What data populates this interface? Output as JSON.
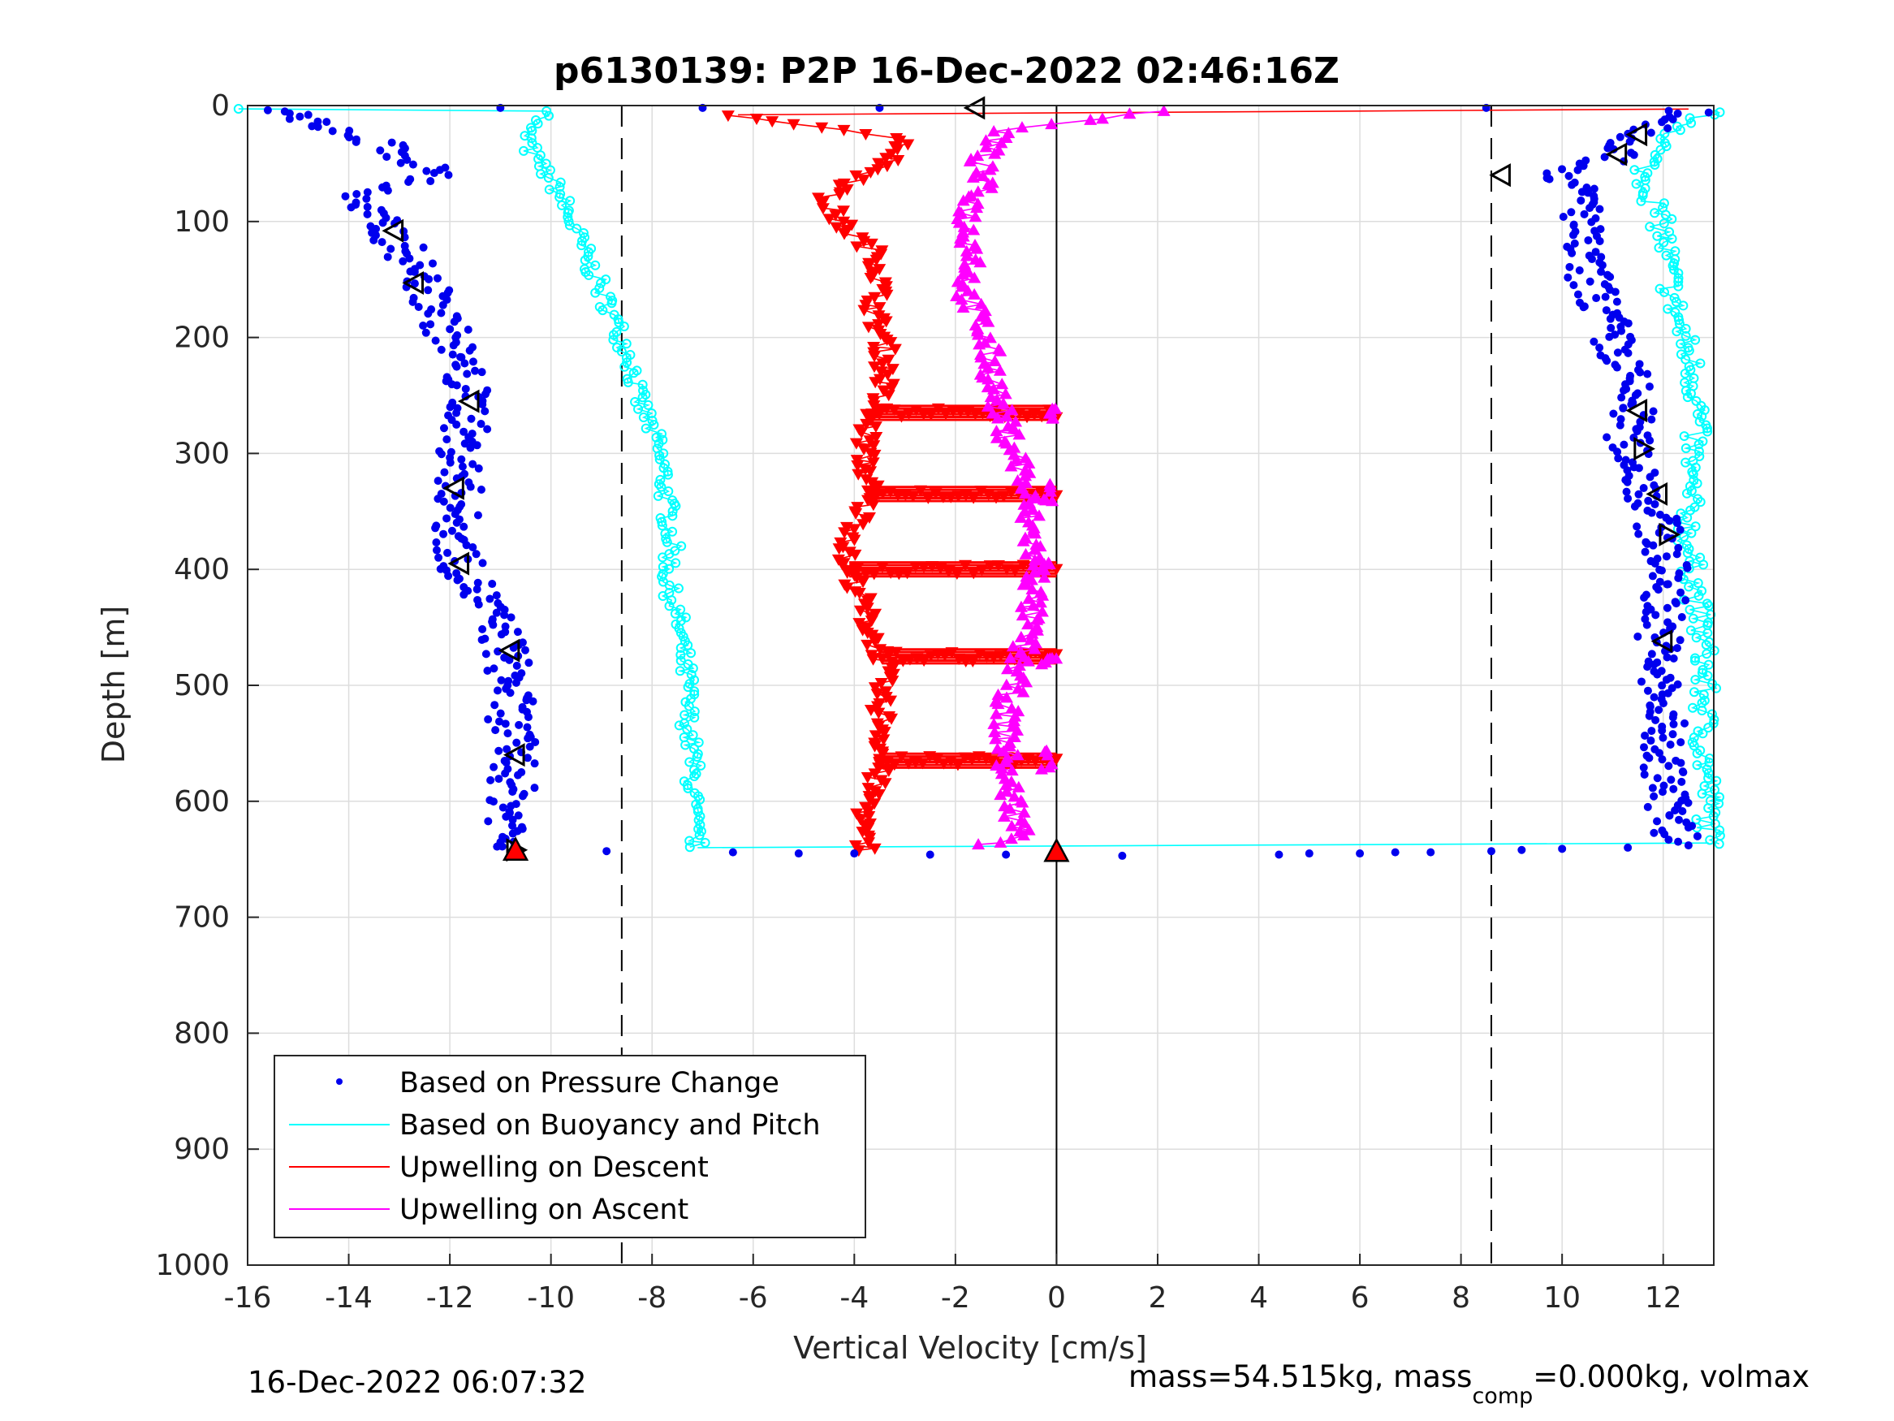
{
  "chart_data": {
    "type": "scatter",
    "title": "p6130139: P2P 16-Dec-2022 02:46:16Z",
    "xlabel": "Vertical Velocity [cm/s]",
    "ylabel": "Depth [m]",
    "xlim": [
      -16,
      13
    ],
    "ylim": [
      0,
      1000
    ],
    "y_reversed": true,
    "grid": true,
    "xticks": [
      "-16",
      "-14",
      "-12",
      "-10",
      "-8",
      "-6",
      "-4",
      "-2",
      "0",
      "2",
      "4",
      "6",
      "8",
      "10",
      "12"
    ],
    "yticks": [
      "0",
      "100",
      "200",
      "300",
      "400",
      "500",
      "600",
      "700",
      "800",
      "900",
      "1000"
    ],
    "legend_position": "bottom-left",
    "reference_lines": {
      "dashed_x": [
        -8.6,
        8.6
      ],
      "solid_x": [
        0
      ]
    },
    "series": [
      {
        "name": "Based on Pressure Change",
        "color": "#0000ee",
        "marker": "dot",
        "descent_profile": [
          [
            -15.5,
            5
          ],
          [
            -14.2,
            20
          ],
          [
            -13.0,
            40
          ],
          [
            -12.2,
            60
          ],
          [
            -14.0,
            80
          ],
          [
            -13.3,
            105
          ],
          [
            -12.8,
            130
          ],
          [
            -12.5,
            155
          ],
          [
            -12.2,
            180
          ],
          [
            -11.9,
            210
          ],
          [
            -11.7,
            240
          ],
          [
            -11.6,
            265
          ],
          [
            -11.8,
            295
          ],
          [
            -11.8,
            330
          ],
          [
            -11.9,
            365
          ],
          [
            -11.8,
            395
          ],
          [
            -11.3,
            430
          ],
          [
            -10.9,
            465
          ],
          [
            -10.8,
            500
          ],
          [
            -10.8,
            535
          ],
          [
            -10.7,
            565
          ],
          [
            -10.8,
            600
          ],
          [
            -10.8,
            625
          ],
          [
            -10.9,
            640
          ]
        ],
        "ascent_profile": [
          [
            12.5,
            5
          ],
          [
            11.6,
            25
          ],
          [
            11.0,
            45
          ],
          [
            10.0,
            60
          ],
          [
            10.5,
            85
          ],
          [
            10.3,
            115
          ],
          [
            10.5,
            145
          ],
          [
            10.8,
            175
          ],
          [
            11.0,
            205
          ],
          [
            11.3,
            235
          ],
          [
            11.4,
            260
          ],
          [
            11.3,
            290
          ],
          [
            11.6,
            320
          ],
          [
            11.8,
            350
          ],
          [
            12.0,
            380
          ],
          [
            12.1,
            410
          ],
          [
            12.0,
            440
          ],
          [
            11.9,
            470
          ],
          [
            11.9,
            505
          ],
          [
            12.0,
            540
          ],
          [
            12.0,
            570
          ],
          [
            12.1,
            600
          ],
          [
            12.2,
            625
          ],
          [
            12.3,
            635
          ]
        ],
        "bottom_turn": [
          [
            -8.9,
            643
          ],
          [
            -6.4,
            644
          ],
          [
            -5.1,
            645
          ],
          [
            -4.0,
            645
          ],
          [
            -2.5,
            646
          ],
          [
            -1.0,
            646
          ],
          [
            1.3,
            647
          ],
          [
            4.4,
            646
          ],
          [
            5.0,
            645
          ],
          [
            6.0,
            645
          ],
          [
            6.7,
            644
          ],
          [
            7.4,
            644
          ],
          [
            8.6,
            643
          ],
          [
            9.2,
            642
          ],
          [
            10.0,
            641
          ],
          [
            11.3,
            640
          ],
          [
            12.5,
            638
          ]
        ],
        "surface": [
          [
            -15.6,
            4
          ],
          [
            -14.8,
            8
          ],
          [
            -11.0,
            2
          ],
          [
            -7.0,
            2
          ],
          [
            -3.5,
            2
          ],
          [
            8.5,
            2
          ],
          [
            12.9,
            6
          ]
        ]
      },
      {
        "name": "Based on Buoyancy and Pitch",
        "color": "#00ffff",
        "marker": "line",
        "descent_profile": [
          [
            -16.0,
            2
          ],
          [
            -10.0,
            5
          ],
          [
            -10.5,
            20
          ],
          [
            -10.4,
            40
          ],
          [
            -9.9,
            70
          ],
          [
            -9.6,
            100
          ],
          [
            -9.3,
            130
          ],
          [
            -9.0,
            160
          ],
          [
            -8.7,
            190
          ],
          [
            -8.4,
            220
          ],
          [
            -8.3,
            250
          ],
          [
            -8.0,
            280
          ],
          [
            -7.8,
            310
          ],
          [
            -7.7,
            345
          ],
          [
            -7.6,
            380
          ],
          [
            -7.7,
            410
          ],
          [
            -7.5,
            440
          ],
          [
            -7.4,
            470
          ],
          [
            -7.3,
            500
          ],
          [
            -7.3,
            530
          ],
          [
            -7.2,
            560
          ],
          [
            -7.2,
            590
          ],
          [
            -7.2,
            615
          ],
          [
            -7.1,
            640
          ]
        ],
        "ascent_profile": [
          [
            12.9,
            5
          ],
          [
            12.4,
            20
          ],
          [
            11.8,
            40
          ],
          [
            11.6,
            60
          ],
          [
            11.8,
            80
          ],
          [
            12.0,
            110
          ],
          [
            12.1,
            140
          ],
          [
            12.2,
            170
          ],
          [
            12.4,
            200
          ],
          [
            12.6,
            230
          ],
          [
            12.7,
            260
          ],
          [
            12.6,
            290
          ],
          [
            12.5,
            320
          ],
          [
            12.5,
            350
          ],
          [
            12.5,
            380
          ],
          [
            12.6,
            410
          ],
          [
            12.7,
            440
          ],
          [
            12.8,
            470
          ],
          [
            12.8,
            500
          ],
          [
            12.8,
            530
          ],
          [
            12.8,
            560
          ],
          [
            12.9,
            590
          ],
          [
            12.9,
            615
          ],
          [
            12.9,
            636
          ]
        ],
        "bottom_connector": [
          [
            -7.1,
            640
          ],
          [
            12.9,
            636
          ]
        ]
      },
      {
        "name": "Upwelling on Descent",
        "color": "#ff0000",
        "marker": "triangle-down",
        "values": [
          [
            -6.3,
            8
          ],
          [
            -2.9,
            30
          ],
          [
            -3.5,
            55
          ],
          [
            -4.6,
            80
          ],
          [
            -4.2,
            105
          ],
          [
            -3.5,
            130
          ],
          [
            -3.5,
            155
          ],
          [
            -3.6,
            180
          ],
          [
            -3.4,
            210
          ],
          [
            -3.4,
            240
          ],
          [
            -3.7,
            270
          ],
          [
            -3.8,
            300
          ],
          [
            -3.7,
            330
          ],
          [
            -3.9,
            360
          ],
          [
            -4.2,
            390
          ],
          [
            -3.9,
            420
          ],
          [
            -3.7,
            450
          ],
          [
            -3.4,
            480
          ],
          [
            -3.5,
            510
          ],
          [
            -3.4,
            540
          ],
          [
            -3.5,
            570
          ],
          [
            -3.7,
            600
          ],
          [
            -3.9,
            630
          ],
          [
            -3.7,
            643
          ]
        ],
        "spikes_to_zero_depths": [
          265,
          335,
          400,
          475,
          565
        ],
        "surface_line": [
          [
            -6.3,
            8
          ],
          [
            12.5,
            3
          ]
        ]
      },
      {
        "name": "Upwelling on Ascent",
        "color": "#ff00ff",
        "marker": "triangle-up",
        "values": [
          [
            2.2,
            5
          ],
          [
            -1.0,
            20
          ],
          [
            -1.5,
            45
          ],
          [
            -1.5,
            70
          ],
          [
            -1.8,
            100
          ],
          [
            -1.6,
            130
          ],
          [
            -1.8,
            160
          ],
          [
            -1.5,
            190
          ],
          [
            -1.3,
            220
          ],
          [
            -1.2,
            250
          ],
          [
            -1.0,
            280
          ],
          [
            -0.7,
            310
          ],
          [
            -0.6,
            340
          ],
          [
            -0.5,
            370
          ],
          [
            -0.4,
            400
          ],
          [
            -0.5,
            430
          ],
          [
            -0.6,
            460
          ],
          [
            -0.8,
            490
          ],
          [
            -1.0,
            520
          ],
          [
            -1.0,
            550
          ],
          [
            -1.0,
            580
          ],
          [
            -0.8,
            610
          ],
          [
            -0.7,
            630
          ],
          [
            -1.3,
            638
          ]
        ]
      }
    ],
    "markers": {
      "left_pointing": [
        [
          -1.6,
          2
        ],
        [
          11.5,
          25
        ],
        [
          11.1,
          42
        ],
        [
          8.8,
          60
        ],
        [
          -13.1,
          108
        ],
        [
          -12.7,
          153
        ],
        [
          -11.6,
          255
        ],
        [
          -11.9,
          330
        ],
        [
          -11.8,
          395
        ],
        [
          -10.8,
          470
        ],
        [
          -10.7,
          560
        ],
        [
          11.5,
          263
        ],
        [
          11.9,
          335
        ],
        [
          12.0,
          462
        ]
      ],
      "right_pointing": [
        [
          11.6,
          296
        ],
        [
          12.1,
          370
        ],
        [
          -10.7,
          642
        ]
      ],
      "red_triangle": [
        [
          0,
          643
        ],
        [
          -10.7,
          642
        ]
      ]
    },
    "footer": {
      "timestamp": "16-Dec-2022 06:07:32",
      "info_prefix": "mass=54.515kg, mass",
      "info_subscript": "comp",
      "info_suffix": "=0.000kg, volmax"
    }
  }
}
